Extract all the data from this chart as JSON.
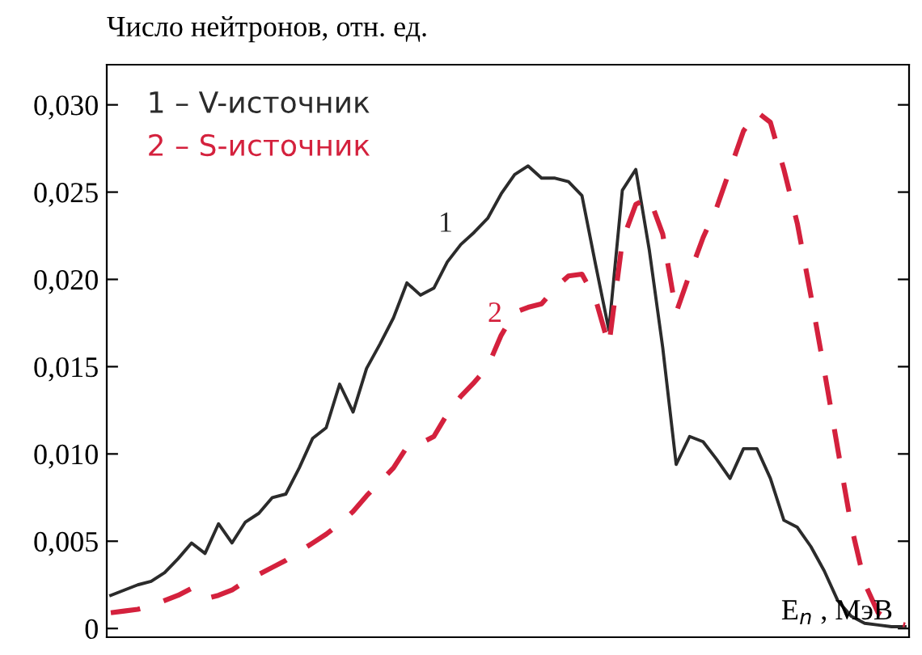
{
  "chart_data": {
    "type": "line",
    "ylabel": "Число нейтронов, отн. ед.",
    "xlabel": "E$_{n}$ , МэВ",
    "annotations": [
      "1 – V-источник",
      "2 – S-источник"
    ],
    "categories": [
      null,
      null,
      null,
      null,
      null,
      null,
      null,
      null,
      null,
      null,
      null,
      null,
      null,
      null,
      null,
      null,
      null,
      null,
      null,
      null,
      null,
      null,
      null,
      null,
      null,
      null,
      null,
      null,
      null,
      null,
      null,
      null,
      null,
      null,
      null,
      null,
      null,
      null,
      null,
      null,
      null,
      null,
      null,
      null,
      null,
      null,
      null,
      null,
      null,
      null,
      null,
      null,
      null,
      null,
      null,
      null,
      null,
      null,
      null,
      null
    ],
    "series": [
      {
        "name": "1",
        "color": "#2b2b2b",
        "line_style": "solid",
        "values": [
          0.0019,
          0.0022,
          0.0025,
          0.0027,
          0.0032,
          0.004,
          0.0049,
          0.0043,
          0.006,
          0.0049,
          0.0061,
          0.0066,
          0.0075,
          0.0077,
          0.0092,
          0.0109,
          0.0115,
          0.014,
          0.0124,
          0.0149,
          0.0163,
          0.0178,
          0.0198,
          0.0191,
          0.0195,
          0.021,
          0.022,
          0.0227,
          0.0235,
          0.0249,
          0.026,
          0.0265,
          0.0258,
          0.0258,
          0.0256,
          0.0248,
          0.0209,
          0.0171,
          0.0251,
          0.0263,
          0.0217,
          0.0161,
          0.0094,
          0.011,
          0.0107,
          0.0097,
          0.0086,
          0.0103,
          0.0103,
          0.0086,
          0.0062,
          0.0058,
          0.0047,
          0.0033,
          0.0016,
          0.0007,
          0.0003,
          0.0002,
          0.0001,
          0.0001
        ]
      },
      {
        "name": "2",
        "color": "#d4213d",
        "line_style": "dashed",
        "values": [
          0.0009,
          0.001,
          0.0011,
          0.0013,
          0.0016,
          0.0019,
          0.0023,
          0.0017,
          0.0019,
          0.0022,
          0.0027,
          0.0031,
          0.0035,
          0.0039,
          0.0044,
          0.0049,
          0.0054,
          0.006,
          0.0067,
          0.0076,
          0.0084,
          0.0092,
          0.0104,
          0.0106,
          0.011,
          0.0123,
          0.0133,
          0.0141,
          0.015,
          0.0168,
          0.0181,
          0.0184,
          0.0186,
          0.0195,
          0.0202,
          0.0203,
          0.0189,
          0.0162,
          0.0222,
          0.0243,
          0.0247,
          0.0226,
          0.0181,
          0.0203,
          0.0224,
          0.0241,
          0.0263,
          0.0285,
          0.0296,
          0.029,
          0.0263,
          0.0232,
          0.0191,
          0.0148,
          0.0103,
          0.0059,
          0.0026,
          0.0009,
          0.0004,
          0.0002
        ]
      }
    ],
    "ylim": [
      -0.0005,
      0.0323
    ],
    "yticks": [
      0,
      {
        "value": 0.005,
        "label": "0,005"
      },
      {
        "value": 0.01,
        "label": "0,010"
      },
      {
        "value": 0.015,
        "label": "0,015"
      },
      {
        "value": 0.02,
        "label": "0,020"
      },
      {
        "value": 0.025,
        "label": "0,025"
      },
      {
        "value": 0.03,
        "label": "0,030"
      }
    ],
    "grid": false,
    "legend": false,
    "marker": "none"
  }
}
